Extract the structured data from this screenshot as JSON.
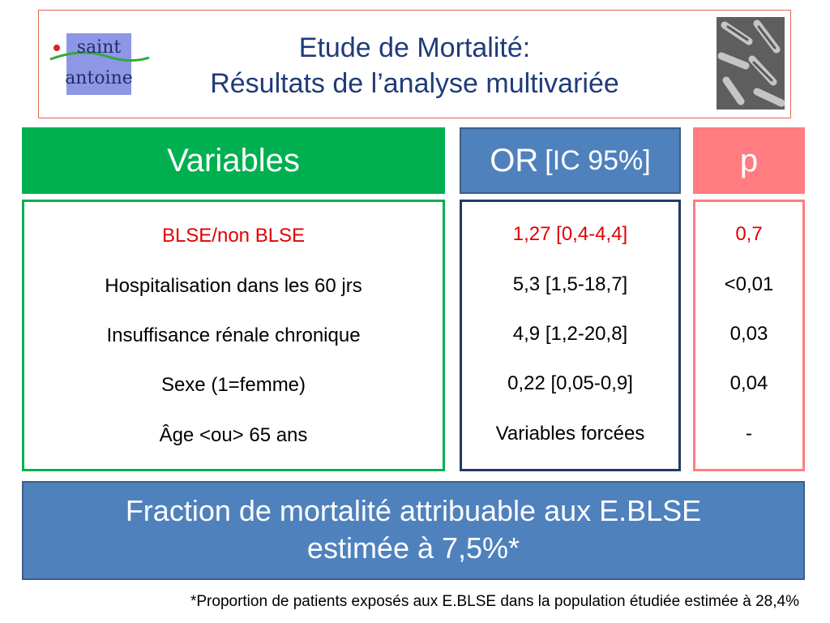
{
  "title": {
    "line1": "Etude de Mortalité:",
    "line2": "Résultats de l’analyse multivariée",
    "logo_text_1": "saint",
    "logo_text_2": "antoine"
  },
  "headers": {
    "variables": "Variables",
    "or_main": "OR",
    "or_ci": "[IC 95%]",
    "p": "p"
  },
  "rows": [
    {
      "variable": "BLSE/non BLSE",
      "or": "1,27 [0,4-4,4]",
      "p": "0,7",
      "highlight": true
    },
    {
      "variable": "Hospitalisation dans les 60 jrs",
      "or": "5,3 [1,5-18,7]",
      "p": "<0,01",
      "highlight": false
    },
    {
      "variable": "Insuffisance rénale chronique",
      "or": "4,9 [1,2-20,8]",
      "p": "0,03",
      "highlight": false
    },
    {
      "variable": "Sexe (1=femme)",
      "or": "0,22 [0,05-0,9]",
      "p": "0,04",
      "highlight": false
    },
    {
      "variable": "Âge <ou> 65 ans",
      "or": "Variables forcées",
      "p": "-",
      "highlight": false
    }
  ],
  "result": {
    "line1": "Fraction de mortalité attribuable aux E.BLSE",
    "line2": "estimée à 7,5%*"
  },
  "footnote": "*Proportion de patients exposés aux E.BLSE dans la population étudiée estimée à 28,4%",
  "colors": {
    "variables_header": "#00b050",
    "or_header": "#4f81bd",
    "p_header": "#ff7c80",
    "highlight_text": "#e00000",
    "title_text": "#1f3b7a"
  }
}
